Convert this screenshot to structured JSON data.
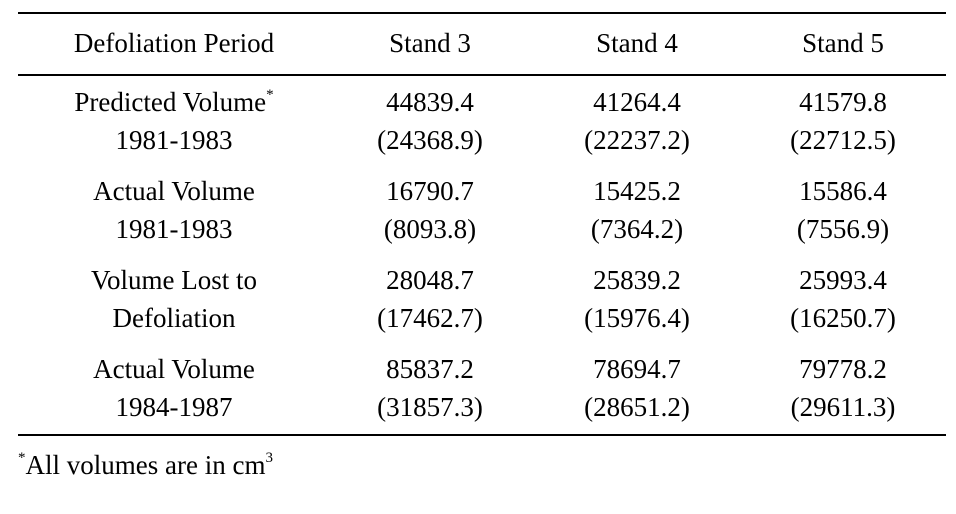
{
  "table": {
    "header": [
      "Defoliation Period",
      "Stand 3",
      "Stand 4",
      "Stand 5"
    ],
    "rows": [
      {
        "label": [
          "Predicted Volume",
          "1981-1983"
        ],
        "label_mark": "*",
        "cells": [
          [
            "44839.4",
            "(24368.9)"
          ],
          [
            "41264.4",
            "(22237.2)"
          ],
          [
            "41579.8",
            "(22712.5)"
          ]
        ]
      },
      {
        "label": [
          "Actual Volume",
          "1981-1983"
        ],
        "cells": [
          [
            "16790.7",
            "(8093.8)"
          ],
          [
            "15425.2",
            "(7364.2)"
          ],
          [
            "15586.4",
            "(7556.9)"
          ]
        ]
      },
      {
        "label": [
          "Volume Lost to",
          "Defoliation"
        ],
        "cells": [
          [
            "28048.7",
            "(17462.7)"
          ],
          [
            "25839.2",
            "(15976.4)"
          ],
          [
            "25993.4",
            "(16250.7)"
          ]
        ]
      },
      {
        "label": [
          "Actual Volume",
          "1984-1987"
        ],
        "cells": [
          [
            "85837.2",
            "(31857.3)"
          ],
          [
            "78694.7",
            "(28651.2)"
          ],
          [
            "79778.2",
            "(29611.3)"
          ]
        ]
      }
    ],
    "footnote": {
      "mark": "*",
      "text": "All volumes are in cm",
      "sup": "3"
    }
  }
}
